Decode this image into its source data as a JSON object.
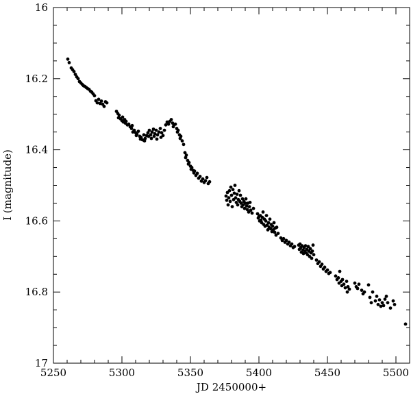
{
  "chart_data": {
    "type": "scatter",
    "title": "",
    "xlabel": "JD 2450000+",
    "ylabel": "I (magnitude)",
    "xlim": [
      5250,
      5510
    ],
    "ylim": [
      16.0,
      17.0
    ],
    "y_inverted": true,
    "grid": false,
    "legend": "none",
    "x_ticks": [
      5250,
      5300,
      5350,
      5400,
      5450,
      5500
    ],
    "x_tick_labels": [
      "5250",
      "5300",
      "5350",
      "5400",
      "5450",
      "5500"
    ],
    "y_ticks": [
      16.0,
      16.2,
      16.4,
      16.6,
      16.8,
      17.0
    ],
    "y_tick_labels": [
      "16",
      "16.2",
      "16.4",
      "16.6",
      "16.8",
      "17"
    ],
    "colors": {
      "marker": "#000000",
      "axes": "#000000",
      "background": "#ffffff"
    },
    "series": [
      {
        "points": [
          [
            5260.5,
            16.145
          ],
          [
            5261.5,
            16.155
          ],
          [
            5263,
            16.17
          ],
          [
            5264,
            16.175
          ],
          [
            5265,
            16.18
          ],
          [
            5266,
            16.188
          ],
          [
            5267,
            16.195
          ],
          [
            5268,
            16.2
          ],
          [
            5269,
            16.208
          ],
          [
            5270,
            16.212
          ],
          [
            5271,
            16.216
          ],
          [
            5272,
            16.22
          ],
          [
            5273,
            16.222
          ],
          [
            5274,
            16.225
          ],
          [
            5275,
            16.228
          ],
          [
            5276,
            16.23
          ],
          [
            5277,
            16.235
          ],
          [
            5278,
            16.238
          ],
          [
            5279,
            16.243
          ],
          [
            5280,
            16.248
          ],
          [
            5281,
            16.262
          ],
          [
            5282,
            16.268
          ],
          [
            5283,
            16.258
          ],
          [
            5284,
            16.27
          ],
          [
            5285,
            16.263
          ],
          [
            5286,
            16.272
          ],
          [
            5287,
            16.278
          ],
          [
            5288,
            16.265
          ],
          [
            5289,
            16.268
          ],
          [
            5296,
            16.292
          ],
          [
            5297,
            16.298
          ],
          [
            5297.5,
            16.31
          ],
          [
            5298,
            16.303
          ],
          [
            5299,
            16.313
          ],
          [
            5300,
            16.318
          ],
          [
            5300.5,
            16.308
          ],
          [
            5301,
            16.322
          ],
          [
            5302,
            16.315
          ],
          [
            5302.5,
            16.325
          ],
          [
            5303,
            16.32
          ],
          [
            5304,
            16.33
          ],
          [
            5305,
            16.328
          ],
          [
            5306,
            16.335
          ],
          [
            5307,
            16.34
          ],
          [
            5307.5,
            16.332
          ],
          [
            5308,
            16.35
          ],
          [
            5309,
            16.345
          ],
          [
            5310,
            16.352
          ],
          [
            5310.5,
            16.36
          ],
          [
            5311,
            16.356
          ],
          [
            5312,
            16.348
          ],
          [
            5313,
            16.362
          ],
          [
            5313.5,
            16.37
          ],
          [
            5314,
            16.365
          ],
          [
            5315,
            16.372
          ],
          [
            5316,
            16.358
          ],
          [
            5316.5,
            16.375
          ],
          [
            5317,
            16.368
          ],
          [
            5318,
            16.36
          ],
          [
            5319,
            16.352
          ],
          [
            5319.5,
            16.362
          ],
          [
            5320,
            16.345
          ],
          [
            5321,
            16.358
          ],
          [
            5321.5,
            16.368
          ],
          [
            5322,
            16.35
          ],
          [
            5323,
            16.342
          ],
          [
            5323.5,
            16.362
          ],
          [
            5324,
            16.355
          ],
          [
            5325,
            16.345
          ],
          [
            5325.5,
            16.37
          ],
          [
            5326,
            16.358
          ],
          [
            5327,
            16.35
          ],
          [
            5328,
            16.34
          ],
          [
            5328.5,
            16.365
          ],
          [
            5329,
            16.352
          ],
          [
            5330,
            16.36
          ],
          [
            5331,
            16.345
          ],
          [
            5332,
            16.33
          ],
          [
            5333,
            16.322
          ],
          [
            5334,
            16.328
          ],
          [
            5335,
            16.32
          ],
          [
            5336,
            16.315
          ],
          [
            5337,
            16.325
          ],
          [
            5337.5,
            16.335
          ],
          [
            5338,
            16.33
          ],
          [
            5339,
            16.328
          ],
          [
            5340,
            16.34
          ],
          [
            5340.5,
            16.35
          ],
          [
            5341,
            16.345
          ],
          [
            5342,
            16.358
          ],
          [
            5342.5,
            16.368
          ],
          [
            5343,
            16.362
          ],
          [
            5344,
            16.375
          ],
          [
            5345,
            16.385
          ],
          [
            5346,
            16.408
          ],
          [
            5346.5,
            16.422
          ],
          [
            5347,
            16.415
          ],
          [
            5348,
            16.43
          ],
          [
            5348.5,
            16.44
          ],
          [
            5349,
            16.436
          ],
          [
            5350,
            16.446
          ],
          [
            5350.5,
            16.455
          ],
          [
            5351,
            16.45
          ],
          [
            5352,
            16.458
          ],
          [
            5352.5,
            16.465
          ],
          [
            5353,
            16.46
          ],
          [
            5354,
            16.472
          ],
          [
            5355,
            16.466
          ],
          [
            5356,
            16.48
          ],
          [
            5357,
            16.475
          ],
          [
            5358,
            16.488
          ],
          [
            5359,
            16.482
          ],
          [
            5360,
            16.492
          ],
          [
            5361,
            16.487
          ],
          [
            5362,
            16.478
          ],
          [
            5363,
            16.495
          ],
          [
            5364,
            16.49
          ],
          [
            5376,
            16.53
          ],
          [
            5376.5,
            16.542
          ],
          [
            5377,
            16.52
          ],
          [
            5377.5,
            16.555
          ],
          [
            5378,
            16.535
          ],
          [
            5378.5,
            16.515
          ],
          [
            5379,
            16.545
          ],
          [
            5379.5,
            16.505
          ],
          [
            5380,
            16.528
          ],
          [
            5380.5,
            16.56
          ],
          [
            5381,
            16.512
          ],
          [
            5381.5,
            16.54
          ],
          [
            5382,
            16.522
          ],
          [
            5382.5,
            16.5
          ],
          [
            5383,
            16.535
          ],
          [
            5383.5,
            16.548
          ],
          [
            5384,
            16.525
          ],
          [
            5384.5,
            16.555
          ],
          [
            5385,
            16.54
          ],
          [
            5385.5,
            16.515
          ],
          [
            5386,
            16.545
          ],
          [
            5386.5,
            16.528
          ],
          [
            5387,
            16.55
          ],
          [
            5387.5,
            16.56
          ],
          [
            5388,
            16.538
          ],
          [
            5388.5,
            16.555
          ],
          [
            5389,
            16.545
          ],
          [
            5389.5,
            16.565
          ],
          [
            5390,
            16.55
          ],
          [
            5390.5,
            16.538
          ],
          [
            5391,
            16.558
          ],
          [
            5391.5,
            16.568
          ],
          [
            5392,
            16.55
          ],
          [
            5392.5,
            16.575
          ],
          [
            5393,
            16.56
          ],
          [
            5393.5,
            16.548
          ],
          [
            5394,
            16.57
          ],
          [
            5395,
            16.578
          ],
          [
            5396,
            16.565
          ],
          [
            5399,
            16.58
          ],
          [
            5399.5,
            16.592
          ],
          [
            5400,
            16.588
          ],
          [
            5400.5,
            16.6
          ],
          [
            5401,
            16.585
          ],
          [
            5401.5,
            16.598
          ],
          [
            5402,
            16.605
          ],
          [
            5402.5,
            16.59
          ],
          [
            5403,
            16.575
          ],
          [
            5403.5,
            16.61
          ],
          [
            5404,
            16.595
          ],
          [
            5404.5,
            16.615
          ],
          [
            5405,
            16.6
          ],
          [
            5405.5,
            16.585
          ],
          [
            5406,
            16.612
          ],
          [
            5406.5,
            16.625
          ],
          [
            5407,
            16.605
          ],
          [
            5407.5,
            16.618
          ],
          [
            5408,
            16.595
          ],
          [
            5408.5,
            16.622
          ],
          [
            5409,
            16.61
          ],
          [
            5409.5,
            16.63
          ],
          [
            5410,
            16.615
          ],
          [
            5410.5,
            16.625
          ],
          [
            5411,
            16.605
          ],
          [
            5411.5,
            16.632
          ],
          [
            5412,
            16.62
          ],
          [
            5412.5,
            16.64
          ],
          [
            5413,
            16.618
          ],
          [
            5414,
            16.635
          ],
          [
            5416,
            16.648
          ],
          [
            5417,
            16.655
          ],
          [
            5418,
            16.65
          ],
          [
            5419,
            16.66
          ],
          [
            5420,
            16.655
          ],
          [
            5421,
            16.665
          ],
          [
            5422,
            16.66
          ],
          [
            5423,
            16.67
          ],
          [
            5424,
            16.665
          ],
          [
            5425,
            16.675
          ],
          [
            5426,
            16.672
          ],
          [
            5429,
            16.668
          ],
          [
            5429.5,
            16.68
          ],
          [
            5430,
            16.665
          ],
          [
            5430.5,
            16.675
          ],
          [
            5431,
            16.688
          ],
          [
            5431.5,
            16.67
          ],
          [
            5432,
            16.682
          ],
          [
            5432.5,
            16.692
          ],
          [
            5433,
            16.675
          ],
          [
            5433.5,
            16.685
          ],
          [
            5434,
            16.67
          ],
          [
            5434.5,
            16.69
          ],
          [
            5435,
            16.68
          ],
          [
            5435.5,
            16.695
          ],
          [
            5436,
            16.672
          ],
          [
            5436.5,
            16.685
          ],
          [
            5437,
            16.7
          ],
          [
            5437.5,
            16.678
          ],
          [
            5438,
            16.69
          ],
          [
            5438.5,
            16.705
          ],
          [
            5439,
            16.685
          ],
          [
            5439.5,
            16.668
          ],
          [
            5440,
            16.695
          ],
          [
            5442,
            16.71
          ],
          [
            5443,
            16.72
          ],
          [
            5444,
            16.715
          ],
          [
            5445,
            16.728
          ],
          [
            5446,
            16.722
          ],
          [
            5447,
            16.735
          ],
          [
            5448,
            16.73
          ],
          [
            5449,
            16.742
          ],
          [
            5450,
            16.738
          ],
          [
            5451,
            16.748
          ],
          [
            5452,
            16.745
          ],
          [
            5456,
            16.755
          ],
          [
            5457,
            16.765
          ],
          [
            5458,
            16.76
          ],
          [
            5458.5,
            16.775
          ],
          [
            5459,
            16.742
          ],
          [
            5460,
            16.77
          ],
          [
            5460.5,
            16.782
          ],
          [
            5461,
            16.765
          ],
          [
            5462,
            16.778
          ],
          [
            5463,
            16.788
          ],
          [
            5464,
            16.77
          ],
          [
            5464.5,
            16.8
          ],
          [
            5465,
            16.785
          ],
          [
            5466,
            16.792
          ],
          [
            5470,
            16.775
          ],
          [
            5471,
            16.785
          ],
          [
            5472,
            16.79
          ],
          [
            5473,
            16.778
          ],
          [
            5475,
            16.795
          ],
          [
            5476,
            16.805
          ],
          [
            5477,
            16.8
          ],
          [
            5480,
            16.78
          ],
          [
            5481,
            16.815
          ],
          [
            5482,
            16.83
          ],
          [
            5483,
            16.8
          ],
          [
            5485,
            16.825
          ],
          [
            5486,
            16.812
          ],
          [
            5487,
            16.835
          ],
          [
            5488,
            16.822
          ],
          [
            5489,
            16.84
          ],
          [
            5490,
            16.83
          ],
          [
            5491,
            16.838
          ],
          [
            5492,
            16.82
          ],
          [
            5493,
            16.812
          ],
          [
            5494,
            16.83
          ],
          [
            5496,
            16.845
          ],
          [
            5498,
            16.825
          ],
          [
            5499,
            16.835
          ],
          [
            5507,
            16.89
          ]
        ]
      }
    ]
  }
}
